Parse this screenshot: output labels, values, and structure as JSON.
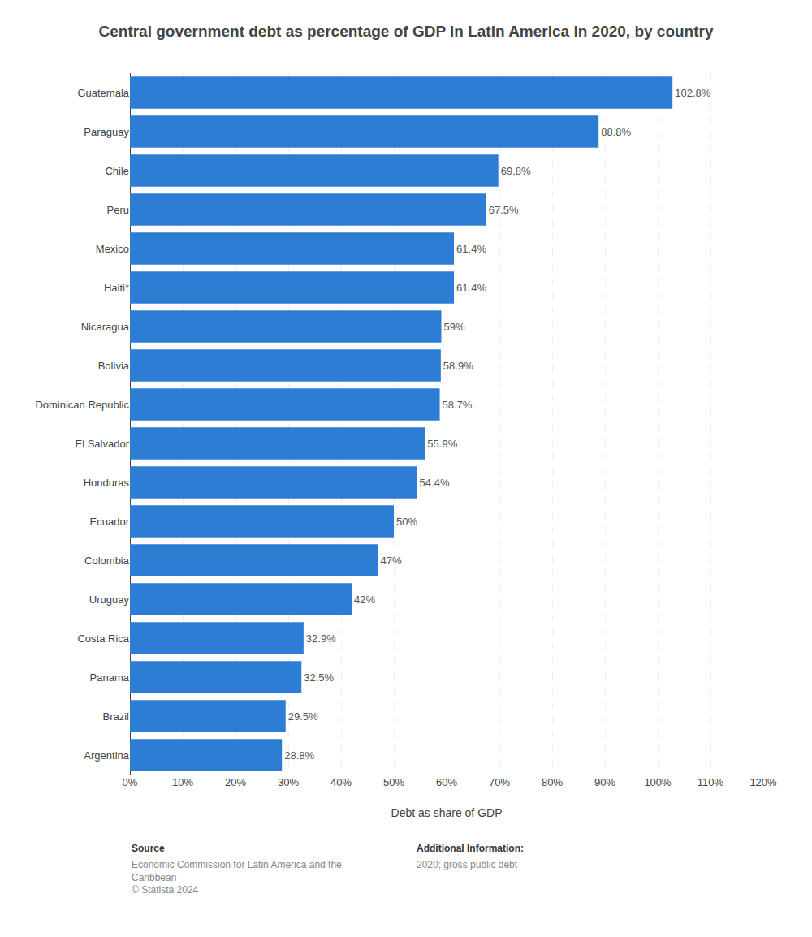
{
  "chart_data": {
    "type": "bar",
    "orientation": "horizontal",
    "title": "Central government debt as percentage of GDP in Latin America in 2020, by country",
    "categories": [
      "Guatemala",
      "Paraguay",
      "Chile",
      "Peru",
      "Mexico",
      "Haiti*",
      "Nicaragua",
      "Bolivia",
      "Dominican Republic",
      "El Salvador",
      "Honduras",
      "Ecuador",
      "Colombia",
      "Uruguay",
      "Costa Rica",
      "Panama",
      "Brazil",
      "Argentina"
    ],
    "values": [
      102.8,
      88.8,
      69.8,
      67.5,
      61.4,
      61.4,
      59.0,
      58.9,
      58.7,
      55.9,
      54.4,
      50.0,
      47.0,
      42.0,
      32.9,
      32.5,
      29.5,
      28.8
    ],
    "value_labels": [
      "102.8%",
      "88.8%",
      "69.8%",
      "67.5%",
      "61.4%",
      "61.4%",
      "59%",
      "58.9%",
      "58.7%",
      "55.9%",
      "54.4%",
      "50%",
      "47%",
      "42%",
      "32.9%",
      "32.5%",
      "29.5%",
      "28.8%"
    ],
    "data_labels": true,
    "color": "#2e7dd4",
    "xlabel": "Debt as share of GDP",
    "xlim": [
      0,
      120
    ],
    "xticks": [
      {
        "value": 0,
        "label": "0%"
      },
      {
        "value": 10,
        "label": "10%"
      },
      {
        "value": 20,
        "label": "20%"
      },
      {
        "value": 30,
        "label": "30%"
      },
      {
        "value": 40,
        "label": "40%"
      },
      {
        "value": 50,
        "label": "50%"
      },
      {
        "value": 60,
        "label": "60%"
      },
      {
        "value": 70,
        "label": "70%"
      },
      {
        "value": 80,
        "label": "80%"
      },
      {
        "value": 90,
        "label": "90%"
      },
      {
        "value": 100,
        "label": "100%"
      },
      {
        "value": 110,
        "label": "110%"
      },
      {
        "value": 120,
        "label": "120%"
      }
    ],
    "grid": true,
    "annotations": [
      "Source",
      "Economic Commission for Latin America and the\nCaribbean\n© Statista 2024",
      "Additional Information:",
      "2020; gross public debt"
    ]
  }
}
